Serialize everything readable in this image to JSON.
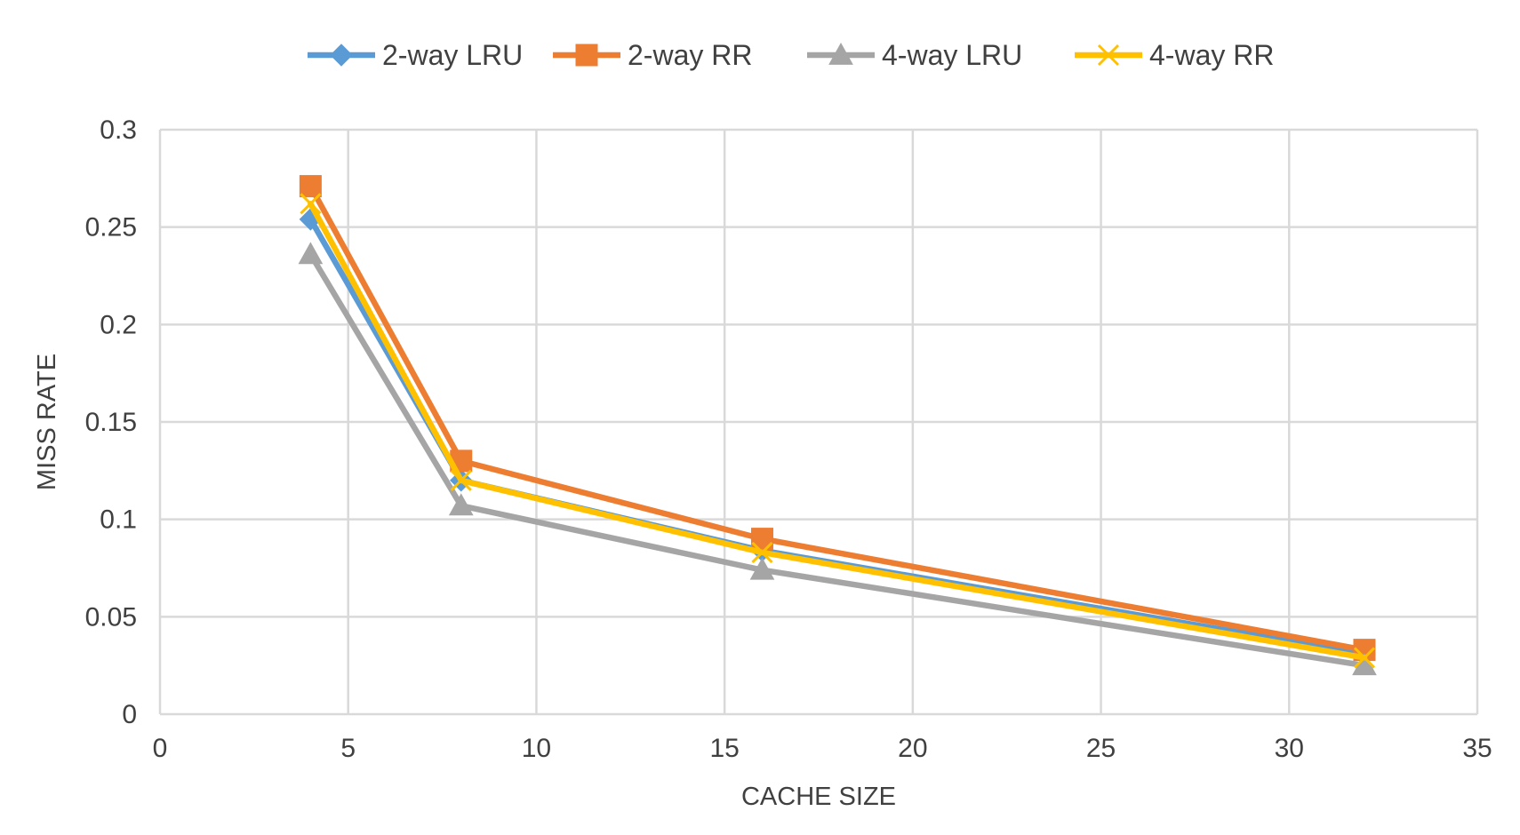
{
  "chart_data": {
    "type": "line",
    "title": "",
    "xlabel": "CACHE SIZE",
    "ylabel": "MISS RATE",
    "xlim": [
      0,
      35
    ],
    "ylim": [
      0,
      0.3
    ],
    "xticks": [
      0,
      5,
      10,
      15,
      20,
      25,
      30,
      35
    ],
    "yticks": [
      0,
      0.05,
      0.1,
      0.15,
      0.2,
      0.25,
      0.3
    ],
    "xtick_labels": [
      "0",
      "5",
      "10",
      "15",
      "20",
      "25",
      "30",
      "35"
    ],
    "ytick_labels": [
      "0",
      "0.05",
      "0.1",
      "0.15",
      "0.2",
      "0.25",
      "0.3"
    ],
    "grid": true,
    "legend_position": "top-center",
    "x": [
      4,
      8,
      16,
      32
    ],
    "series": [
      {
        "name": "2-way LRU",
        "marker": "diamond",
        "color": "#5B9BD5",
        "values": [
          0.254,
          0.12,
          0.084,
          0.031
        ]
      },
      {
        "name": "2-way RR",
        "marker": "square",
        "color": "#ED7D31",
        "values": [
          0.271,
          0.13,
          0.09,
          0.033
        ]
      },
      {
        "name": "4-way LRU",
        "marker": "triangle",
        "color": "#A5A5A5",
        "values": [
          0.236,
          0.107,
          0.074,
          0.025
        ]
      },
      {
        "name": "4-way RR",
        "marker": "x",
        "color": "#FFC000",
        "values": [
          0.262,
          0.12,
          0.083,
          0.029
        ]
      }
    ]
  }
}
